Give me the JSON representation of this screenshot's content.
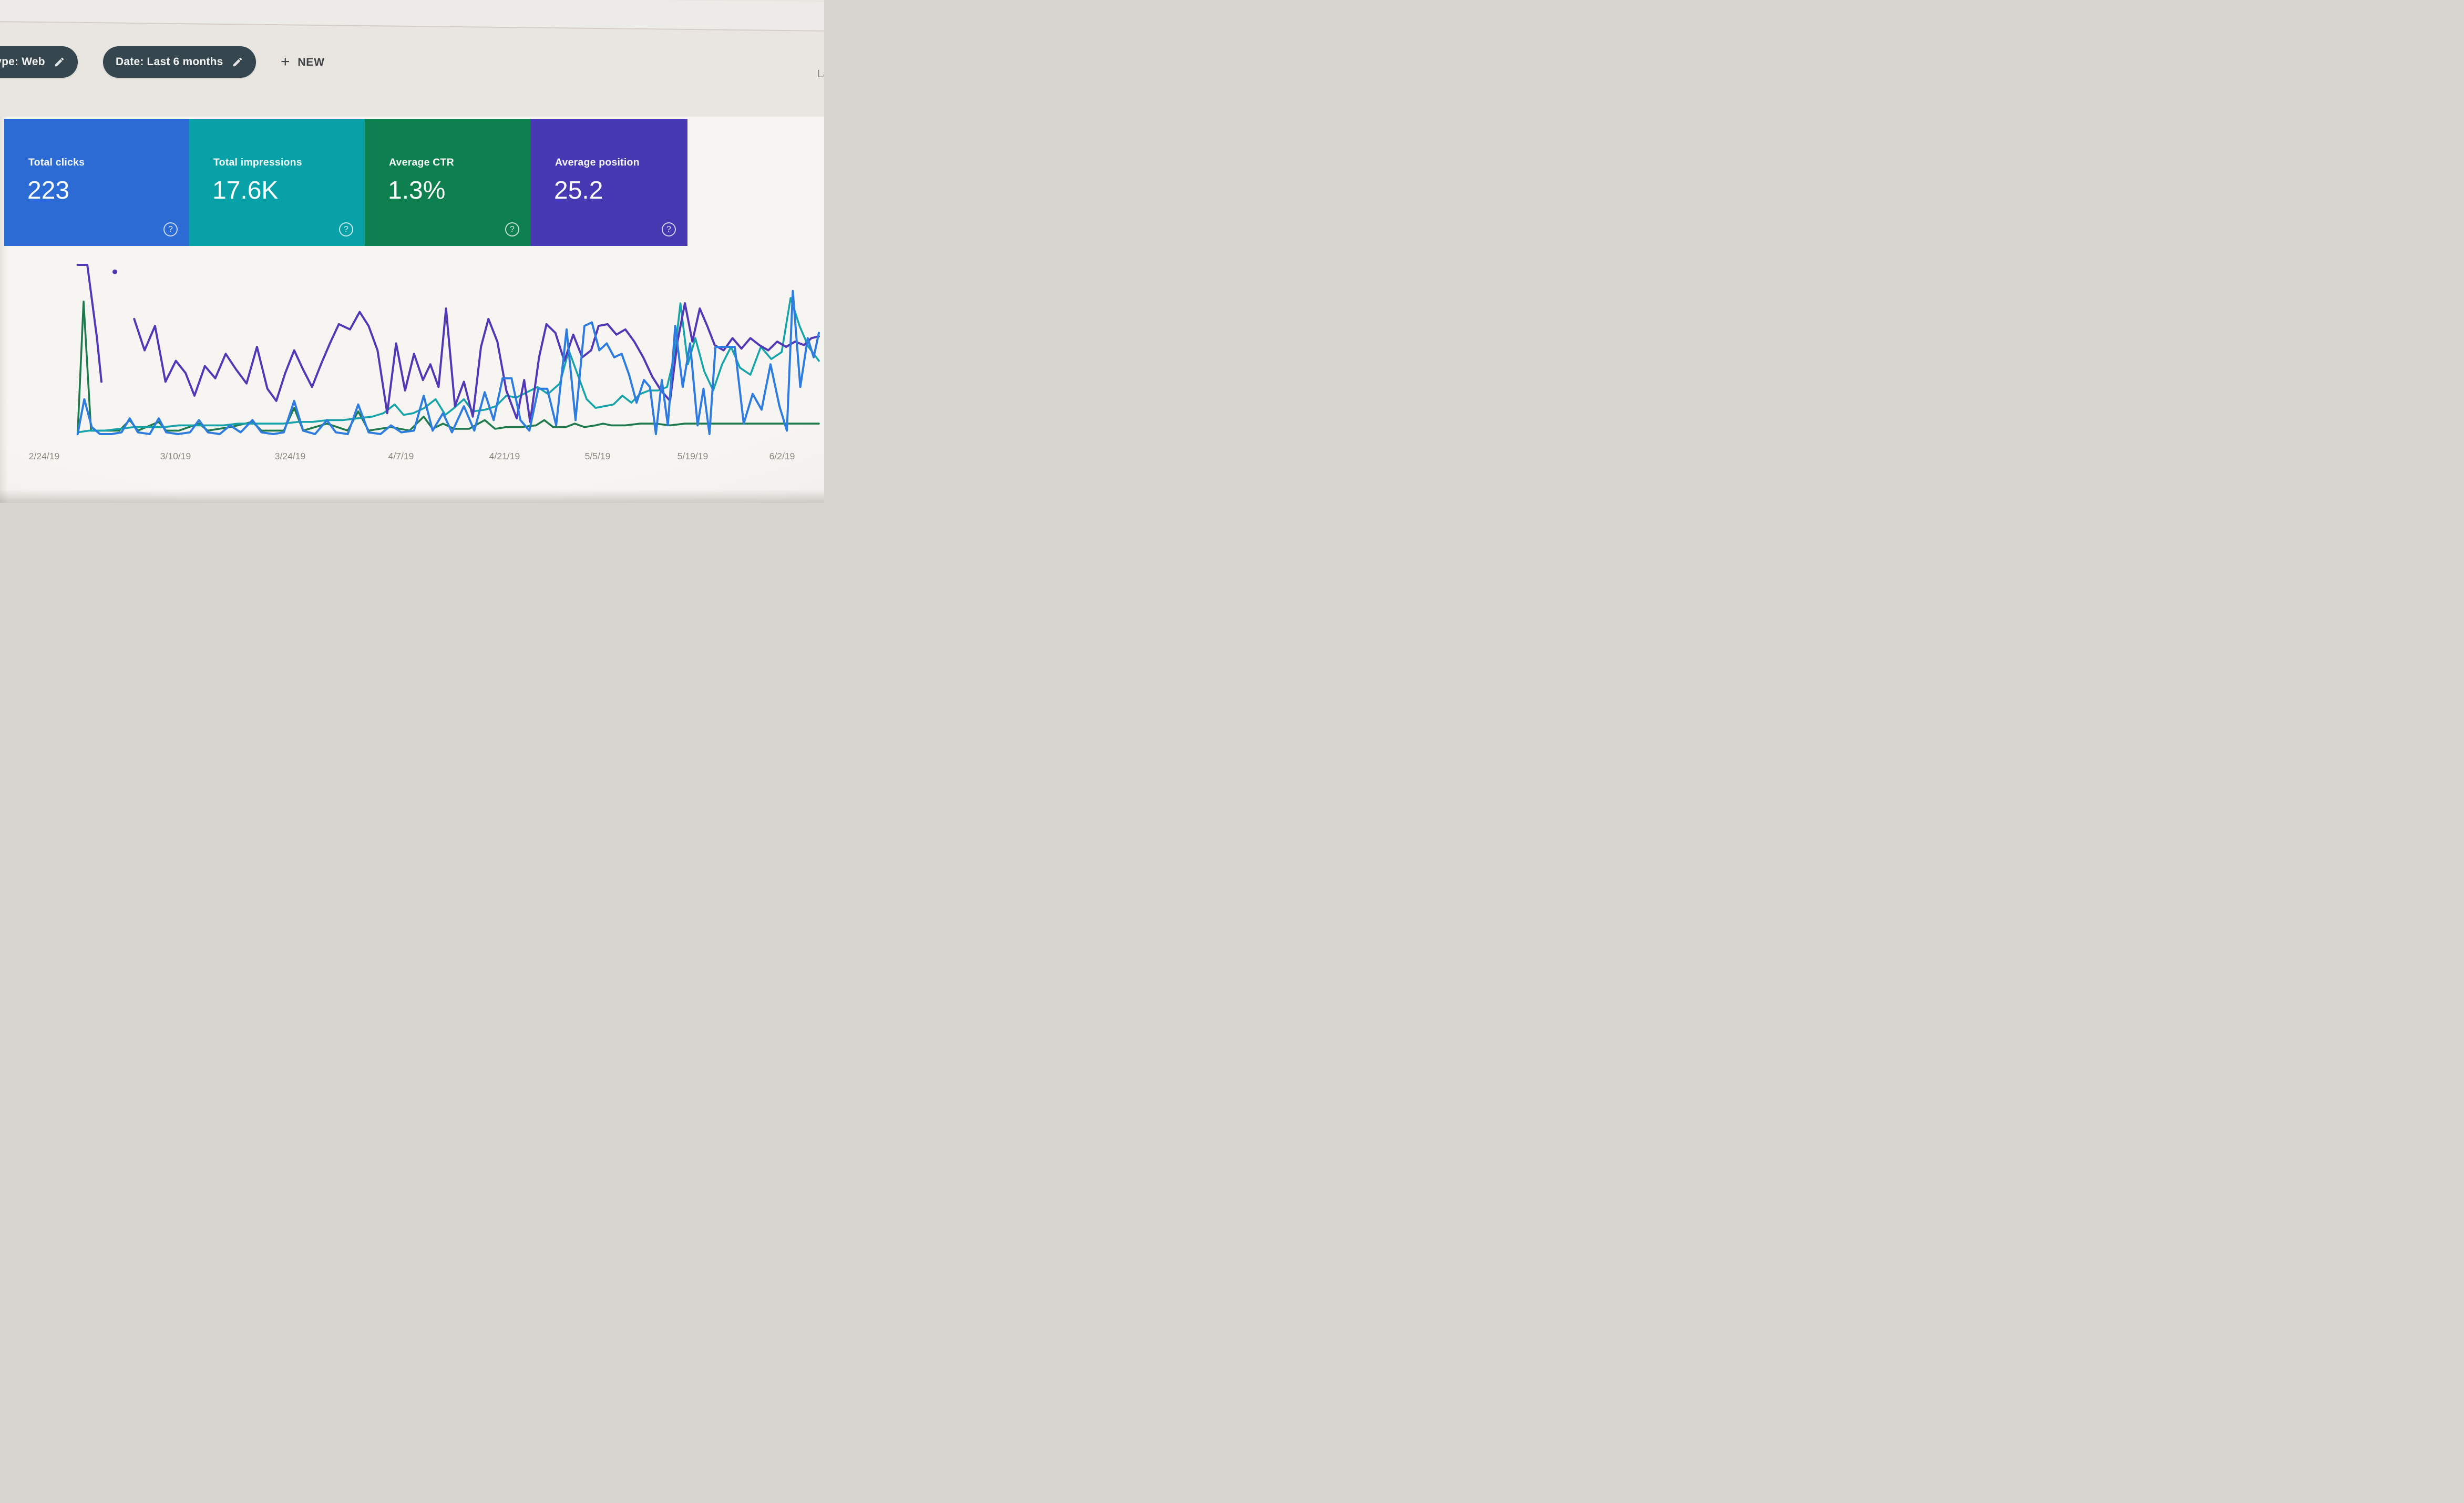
{
  "chrome": {
    "top_right_partial_text": "La"
  },
  "filter_bar": {
    "chips": [
      {
        "label": "type: Web",
        "truncated_at_left_edge": true,
        "edit_icon": "pencil-edit-icon"
      },
      {
        "label": "Date: Last 6 months",
        "edit_icon": "pencil-edit-icon"
      }
    ],
    "new_button": {
      "plus_glyph": "+",
      "label": "NEW"
    }
  },
  "ui": {
    "help_glyph": "?",
    "chip_bg": "#36464e",
    "page_bg": "#e9e6e1",
    "panel_bg": "#f7f5f2",
    "tick_color": "#8b8680"
  },
  "metric_cards": [
    {
      "label": "Total clicks",
      "value": "223",
      "color": "#2b6bd3",
      "selected": true
    },
    {
      "label": "Total impressions",
      "value": "17.6K",
      "color": "#09a1a8",
      "selected": true
    },
    {
      "label": "Average CTR",
      "value": "1.3%",
      "color": "#0e7f4e",
      "selected": true
    },
    {
      "label": "Average position",
      "value": "25.2",
      "color": "#4639b2",
      "selected": true
    }
  ],
  "chart_data": {
    "type": "line",
    "x_ticks": [
      "2/24/19",
      "3/10/19",
      "3/24/19",
      "4/7/19",
      "4/21/19",
      "5/5/19",
      "5/19/19",
      "6/2/19"
    ],
    "x_range_note": "daily points, 2/24/19 through ~6/8/19",
    "y_axis_labels_visible": false,
    "value_units": "percent of plot height (0 = baseline, 100 = top); no numeric y-axis is visible in the image",
    "grid": false,
    "legend": "colors match the metric cards above",
    "series": [
      {
        "name": "Total clicks",
        "slug": "total-clicks",
        "color": "#2e7ce0",
        "z": 4,
        "width": 4,
        "points": [
          [
            0.4,
            0
          ],
          [
            1.3,
            20
          ],
          [
            2.3,
            4
          ],
          [
            3.4,
            0
          ],
          [
            5.0,
            0
          ],
          [
            6.3,
            1
          ],
          [
            7.4,
            9
          ],
          [
            8.5,
            1
          ],
          [
            10.1,
            0
          ],
          [
            11.3,
            9
          ],
          [
            12.3,
            1
          ],
          [
            13.9,
            0
          ],
          [
            15.5,
            1
          ],
          [
            16.7,
            8
          ],
          [
            17.9,
            1
          ],
          [
            19.5,
            0
          ],
          [
            20.9,
            5
          ],
          [
            22.3,
            1
          ],
          [
            23.9,
            8
          ],
          [
            25.1,
            1
          ],
          [
            26.7,
            0
          ],
          [
            28.1,
            1
          ],
          [
            29.5,
            19
          ],
          [
            30.7,
            2
          ],
          [
            32.3,
            0
          ],
          [
            33.9,
            8
          ],
          [
            35.1,
            1
          ],
          [
            36.7,
            0
          ],
          [
            38.1,
            17
          ],
          [
            39.5,
            1
          ],
          [
            41.1,
            0
          ],
          [
            42.5,
            5
          ],
          [
            43.9,
            1
          ],
          [
            45.6,
            2
          ],
          [
            46.9,
            22
          ],
          [
            48.1,
            2
          ],
          [
            49.5,
            12
          ],
          [
            50.7,
            1
          ],
          [
            52.3,
            16
          ],
          [
            53.7,
            2
          ],
          [
            55.1,
            24
          ],
          [
            56.3,
            8
          ],
          [
            57.5,
            32
          ],
          [
            58.7,
            32
          ],
          [
            59.9,
            8
          ],
          [
            61.1,
            2
          ],
          [
            62.3,
            26
          ],
          [
            63.5,
            26
          ],
          [
            64.7,
            5
          ],
          [
            66.1,
            60
          ],
          [
            67.3,
            8
          ],
          [
            68.5,
            62
          ],
          [
            69.5,
            64
          ],
          [
            70.5,
            48
          ],
          [
            71.5,
            52
          ],
          [
            72.5,
            44
          ],
          [
            73.5,
            46
          ],
          [
            74.5,
            34
          ],
          [
            75.5,
            18
          ],
          [
            76.5,
            31
          ],
          [
            77.3,
            27
          ],
          [
            78.1,
            0
          ],
          [
            78.9,
            31
          ],
          [
            79.7,
            5
          ],
          [
            80.7,
            62
          ],
          [
            81.7,
            27
          ],
          [
            82.7,
            52
          ],
          [
            83.7,
            5
          ],
          [
            84.5,
            26
          ],
          [
            85.3,
            0
          ],
          [
            86.1,
            50
          ],
          [
            87.5,
            50
          ],
          [
            88.7,
            50
          ],
          [
            89.9,
            6
          ],
          [
            91.1,
            23
          ],
          [
            92.3,
            14
          ],
          [
            93.5,
            40
          ],
          [
            94.7,
            16
          ],
          [
            95.7,
            2
          ],
          [
            96.5,
            82
          ],
          [
            97.5,
            27
          ],
          [
            98.5,
            55
          ],
          [
            99.3,
            44
          ],
          [
            100,
            58
          ]
        ]
      },
      {
        "name": "Total impressions",
        "slug": "total-impressions",
        "color": "#16a3a9",
        "z": 2,
        "width": 3.6,
        "points": [
          [
            0.4,
            1
          ],
          [
            2,
            2
          ],
          [
            4,
            2
          ],
          [
            6,
            3
          ],
          [
            8,
            4
          ],
          [
            10,
            4
          ],
          [
            12,
            4
          ],
          [
            14,
            5
          ],
          [
            16,
            5
          ],
          [
            18,
            5
          ],
          [
            20,
            5
          ],
          [
            22,
            6
          ],
          [
            24,
            6
          ],
          [
            26,
            6
          ],
          [
            28,
            6
          ],
          [
            30,
            7
          ],
          [
            32,
            7
          ],
          [
            34,
            8
          ],
          [
            36,
            8
          ],
          [
            38,
            9
          ],
          [
            40,
            10
          ],
          [
            41.5,
            12
          ],
          [
            43,
            17
          ],
          [
            44.2,
            11
          ],
          [
            45.5,
            12
          ],
          [
            47,
            15
          ],
          [
            48.5,
            20
          ],
          [
            49.8,
            11
          ],
          [
            51,
            15
          ],
          [
            52.3,
            20
          ],
          [
            53.5,
            13
          ],
          [
            55.2,
            14
          ],
          [
            56.6,
            16
          ],
          [
            58,
            22
          ],
          [
            59.4,
            21
          ],
          [
            60.8,
            24
          ],
          [
            62.2,
            27
          ],
          [
            63.6,
            23
          ],
          [
            65.2,
            29
          ],
          [
            66.4,
            48
          ],
          [
            67.6,
            34
          ],
          [
            68.8,
            20
          ],
          [
            70,
            15
          ],
          [
            71.2,
            16
          ],
          [
            72.4,
            17
          ],
          [
            73.6,
            22
          ],
          [
            74.8,
            18
          ],
          [
            76,
            23
          ],
          [
            77.2,
            25
          ],
          [
            78.4,
            25
          ],
          [
            79.6,
            27
          ],
          [
            80.6,
            45
          ],
          [
            81.4,
            75
          ],
          [
            82.4,
            40
          ],
          [
            83.4,
            55
          ],
          [
            84.6,
            36
          ],
          [
            85.8,
            25
          ],
          [
            87,
            40
          ],
          [
            88.2,
            50
          ],
          [
            89.4,
            38
          ],
          [
            90.8,
            34
          ],
          [
            92.2,
            50
          ],
          [
            93.6,
            43
          ],
          [
            95,
            47
          ],
          [
            96.2,
            78
          ],
          [
            97.4,
            62
          ],
          [
            98.6,
            50
          ],
          [
            100,
            42
          ]
        ]
      },
      {
        "name": "Average CTR",
        "slug": "average-ctr",
        "color": "#1e7a4c",
        "z": 1,
        "width": 3.6,
        "points": [
          [
            0.4,
            0
          ],
          [
            1.2,
            76
          ],
          [
            2.2,
            2
          ],
          [
            4,
            2
          ],
          [
            6,
            2
          ],
          [
            7.4,
            8
          ],
          [
            8.5,
            2
          ],
          [
            11.3,
            7
          ],
          [
            12.3,
            2
          ],
          [
            14,
            2
          ],
          [
            16.7,
            6
          ],
          [
            17.9,
            2
          ],
          [
            20.9,
            4
          ],
          [
            23.9,
            7
          ],
          [
            25.1,
            2
          ],
          [
            28.1,
            2
          ],
          [
            29.5,
            15
          ],
          [
            30.7,
            2
          ],
          [
            33.9,
            6
          ],
          [
            36.7,
            2
          ],
          [
            38.1,
            13
          ],
          [
            39.5,
            2
          ],
          [
            42.5,
            4
          ],
          [
            45,
            2
          ],
          [
            46.9,
            10
          ],
          [
            48.1,
            3
          ],
          [
            49.5,
            6
          ],
          [
            51,
            3
          ],
          [
            53,
            3
          ],
          [
            55.1,
            8
          ],
          [
            56.5,
            3
          ],
          [
            58,
            4
          ],
          [
            60,
            4
          ],
          [
            62,
            5
          ],
          [
            63.1,
            8
          ],
          [
            64.3,
            4
          ],
          [
            66,
            4
          ],
          [
            67.2,
            6
          ],
          [
            68.5,
            4
          ],
          [
            70,
            5
          ],
          [
            71,
            6
          ],
          [
            72.1,
            5
          ],
          [
            74,
            5
          ],
          [
            76,
            6
          ],
          [
            78,
            6
          ],
          [
            80,
            5
          ],
          [
            82,
            6
          ],
          [
            84,
            6
          ],
          [
            86,
            6
          ],
          [
            88,
            6
          ],
          [
            90,
            6
          ],
          [
            92,
            6
          ],
          [
            94,
            6
          ],
          [
            96,
            6
          ],
          [
            98,
            6
          ],
          [
            100,
            6
          ]
        ]
      },
      {
        "name": "Average position",
        "slug": "average-position",
        "color": "#5238b6",
        "z": 3,
        "width": 4,
        "points": [
          [
            0.4,
            97
          ],
          [
            1.7,
            97
          ],
          [
            3.0,
            55
          ],
          [
            3.6,
            30
          ],
          null,
          [
            5.4,
            93
          ],
          null,
          [
            8.0,
            66
          ],
          [
            9.4,
            48
          ],
          [
            10.8,
            62
          ],
          [
            12.2,
            30
          ],
          [
            13.6,
            42
          ],
          [
            14.9,
            35
          ],
          [
            16.1,
            22
          ],
          [
            17.5,
            39
          ],
          [
            18.9,
            32
          ],
          [
            20.3,
            46
          ],
          [
            21.7,
            37
          ],
          [
            23.1,
            29
          ],
          [
            24.5,
            50
          ],
          [
            25.9,
            26
          ],
          [
            27.1,
            19
          ],
          [
            28.3,
            35
          ],
          [
            29.5,
            48
          ],
          [
            30.7,
            37
          ],
          [
            31.9,
            27
          ],
          [
            33.1,
            40
          ],
          [
            34.3,
            52
          ],
          [
            35.5,
            63
          ],
          [
            37.0,
            60
          ],
          [
            38.3,
            70
          ],
          [
            39.5,
            62
          ],
          [
            40.7,
            48
          ],
          [
            42.0,
            12
          ],
          [
            43.2,
            52
          ],
          [
            44.4,
            25
          ],
          [
            45.6,
            46
          ],
          [
            46.8,
            31
          ],
          [
            47.8,
            40
          ],
          [
            48.9,
            27
          ],
          [
            49.9,
            72
          ],
          [
            51.1,
            16
          ],
          [
            52.3,
            30
          ],
          [
            53.5,
            10
          ],
          [
            54.6,
            50
          ],
          [
            55.6,
            66
          ],
          [
            56.8,
            53
          ],
          [
            58.0,
            25
          ],
          [
            59.4,
            9
          ],
          [
            60.4,
            31
          ],
          [
            61.2,
            7
          ],
          [
            62.4,
            44
          ],
          [
            63.4,
            63
          ],
          [
            64.6,
            58
          ],
          [
            65.8,
            42
          ],
          [
            67.0,
            57
          ],
          [
            68.2,
            44
          ],
          [
            69.4,
            48
          ],
          [
            70.4,
            62
          ],
          [
            71.6,
            63
          ],
          [
            72.8,
            57
          ],
          [
            74.0,
            60
          ],
          [
            75.2,
            53
          ],
          [
            76.4,
            44
          ],
          [
            77.6,
            33
          ],
          [
            78.8,
            25
          ],
          [
            80.0,
            19
          ],
          [
            81.0,
            53
          ],
          [
            82.0,
            75
          ],
          [
            83.0,
            53
          ],
          [
            84.0,
            72
          ],
          [
            85.0,
            62
          ],
          [
            86.0,
            51
          ],
          [
            87.2,
            48
          ],
          [
            88.4,
            55
          ],
          [
            89.6,
            49
          ],
          [
            90.8,
            55
          ],
          [
            92.0,
            51
          ],
          [
            93.2,
            48
          ],
          [
            94.4,
            53
          ],
          [
            95.6,
            50
          ],
          [
            96.8,
            53
          ],
          [
            98.0,
            51
          ],
          [
            99.0,
            55
          ],
          [
            100,
            56
          ]
        ]
      }
    ]
  }
}
